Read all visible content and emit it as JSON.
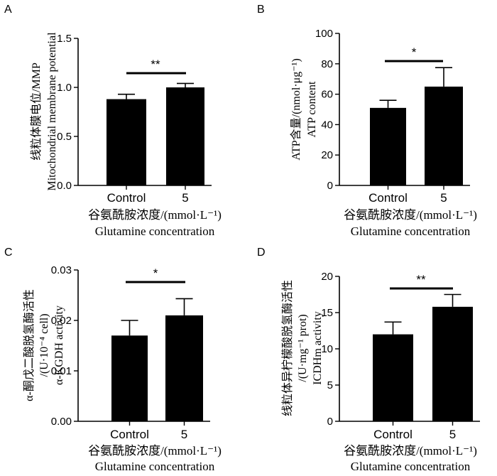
{
  "chart_data": [
    {
      "panel": "A",
      "type": "bar",
      "categories": [
        "Control",
        "5"
      ],
      "values": [
        0.88,
        1.0
      ],
      "errors": [
        0.05,
        0.04
      ],
      "ylabel": [
        "线粒体膜电位/MMP",
        "Mitochondrial membrane potential"
      ],
      "xlabel": [
        "谷氨酰胺浓度/(mmol·L⁻¹)",
        "Glutamine concentration"
      ],
      "ylim": [
        0,
        1.5
      ],
      "yticks": [
        "0.0",
        "0.5",
        "1.0",
        "1.5"
      ],
      "significance": "**"
    },
    {
      "panel": "B",
      "type": "bar",
      "categories": [
        "Control",
        "5"
      ],
      "values": [
        51,
        65
      ],
      "errors": [
        5,
        12.5
      ],
      "ylabel": [
        "ATP含量/(nmol·μg⁻¹)",
        "ATP content"
      ],
      "xlabel": [
        "谷氨酰胺浓度/(mmol·L⁻¹)",
        "Glutamine concentration"
      ],
      "ylim": [
        0,
        100
      ],
      "yticks": [
        "0",
        "20",
        "40",
        "60",
        "80",
        "100"
      ],
      "significance": "*"
    },
    {
      "panel": "C",
      "type": "bar",
      "categories": [
        "Control",
        "5"
      ],
      "values": [
        0.017,
        0.021
      ],
      "errors": [
        0.003,
        0.0033
      ],
      "ylabel": [
        "α-酮戊二酸脱氢酶活性",
        "/(U·10⁻⁴ cell)",
        "α-KGDH activity"
      ],
      "xlabel": [
        "谷氨酰胺浓度/(mmol·L⁻¹)",
        "Glutamine concentration"
      ],
      "ylim": [
        0,
        0.03
      ],
      "yticks": [
        "0.00",
        "0.01",
        "0.02",
        "0.03"
      ],
      "significance": "*"
    },
    {
      "panel": "D",
      "type": "bar",
      "categories": [
        "Control",
        "5"
      ],
      "values": [
        12,
        15.8
      ],
      "errors": [
        1.7,
        1.7
      ],
      "ylabel": [
        "线粒体异柠檬酸脱氢酶活性",
        "/(U·mg⁻¹ prot)",
        "ICDHm activity"
      ],
      "xlabel": [
        "谷氨酰胺浓度/(mmol·L⁻¹)",
        "Glutamine concentration"
      ],
      "ylim": [
        0,
        20
      ],
      "yticks": [
        "0",
        "5",
        "10",
        "15",
        "20"
      ],
      "significance": "**"
    }
  ],
  "colors": {
    "bar": "#000000"
  }
}
